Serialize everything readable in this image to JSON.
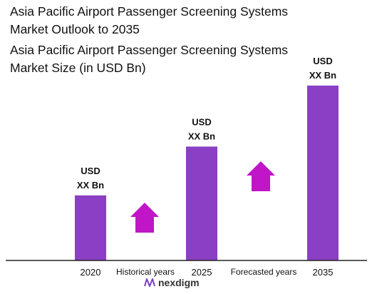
{
  "header": {
    "title": "Asia Pacific Airport Passenger Screening Systems Market Outlook to 2035",
    "subtitle": "Asia Pacific Airport Passenger Screening Systems Market Size (in USD Bn)"
  },
  "chart_data": {
    "type": "bar",
    "title": "Asia Pacific Airport Passenger Screening Systems Market Outlook to 2035",
    "subtitle": "Asia Pacific Airport Passenger Screening Systems Market Size (in USD Bn)",
    "categories": [
      "2020",
      "2025",
      "2035"
    ],
    "values": [
      3.2,
      5.6,
      8.6
    ],
    "ylim": [
      0,
      10
    ],
    "grid": false,
    "legend": "none",
    "bar_color": "#8a3fc4",
    "data_labels": [
      {
        "line1": "USD",
        "line2": "XX Bn"
      },
      {
        "line1": "USD",
        "line2": "XX Bn"
      },
      {
        "line1": "USD",
        "line2": "XX Bn"
      }
    ],
    "period_labels": [
      "Historical years",
      "Forecasted years"
    ],
    "arrow_color": "#c016c7"
  },
  "brand": {
    "logo_text": "nexdigm",
    "logo_icon": "nexdigm-logo-icon",
    "logo_color": "#7a3fc4"
  }
}
